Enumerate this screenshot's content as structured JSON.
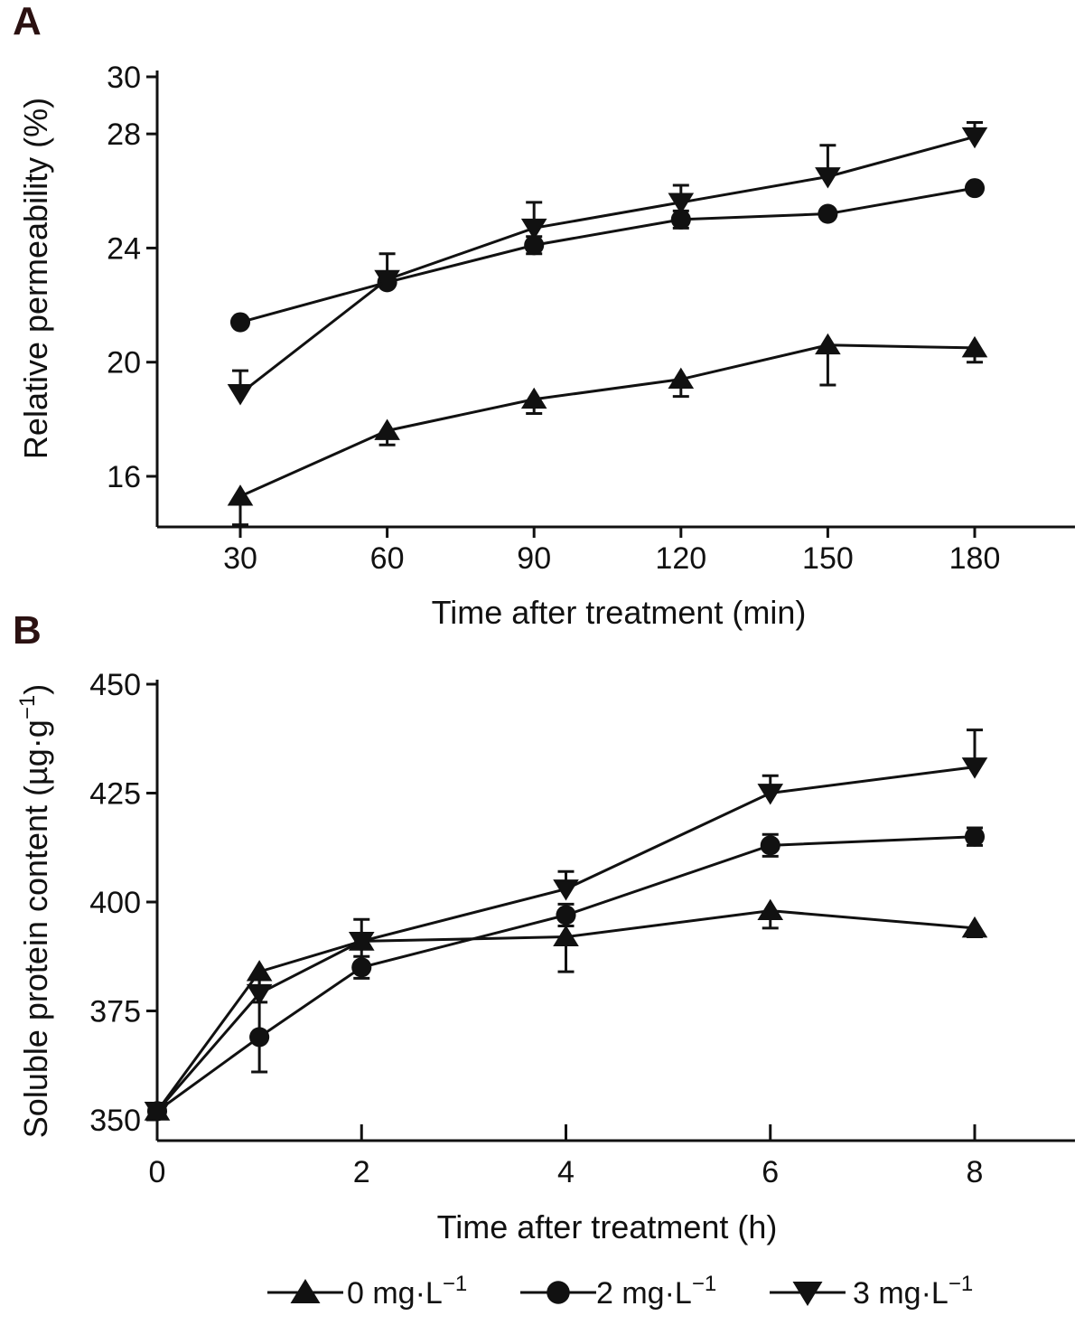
{
  "figure": {
    "legend": [
      {
        "marker": "triangle-up",
        "value": "0",
        "unit": "mg·L",
        "exponent": "−1"
      },
      {
        "marker": "circle",
        "value": "2",
        "unit": "mg·L",
        "exponent": "−1"
      },
      {
        "marker": "triangle-down",
        "value": "3",
        "unit": "mg·L",
        "exponent": "−1"
      }
    ],
    "line_color": "#111111"
  },
  "chart_data": [
    {
      "panel": "A",
      "type": "line",
      "xlabel": "Time after treatment (min)",
      "ylabel": "Relative permeability (%)",
      "x": [
        30,
        60,
        90,
        120,
        150,
        180
      ],
      "xticks": [
        30,
        60,
        90,
        120,
        150,
        180
      ],
      "yticks": [
        16,
        20,
        24,
        28,
        30
      ],
      "ylim": [
        14,
        30
      ],
      "series": [
        {
          "name": "0 mg·L−1",
          "marker": "triangle-up",
          "values": [
            15.3,
            17.6,
            18.7,
            19.4,
            20.6,
            20.5
          ],
          "error": [
            1.0,
            0.5,
            0.5,
            0.6,
            1.4,
            0.5
          ]
        },
        {
          "name": "2 mg·L−1",
          "marker": "circle",
          "values": [
            21.4,
            22.8,
            24.1,
            25.0,
            25.2,
            26.1
          ],
          "error": [
            0.0,
            0.0,
            0.3,
            0.3,
            0.0,
            0.0
          ]
        },
        {
          "name": "3 mg·L−1",
          "marker": "triangle-down",
          "values": [
            18.9,
            22.9,
            24.7,
            25.6,
            26.5,
            27.9
          ],
          "error": [
            0.8,
            0.9,
            0.9,
            0.6,
            1.1,
            0.5
          ]
        }
      ]
    },
    {
      "panel": "B",
      "type": "line",
      "xlabel": "Time after treatment (h)",
      "ylabel": "Soluble protein content (µg·g−1)",
      "x": [
        0,
        1,
        2,
        4,
        6,
        8
      ],
      "xticks": [
        0,
        2,
        4,
        6,
        8
      ],
      "yticks": [
        350,
        375,
        400,
        425,
        450
      ],
      "ylim": [
        345,
        450
      ],
      "series": [
        {
          "name": "0 mg·L−1",
          "marker": "triangle-up",
          "values": [
            352,
            384,
            391,
            392,
            398,
            394
          ],
          "error": [
            0,
            3.5,
            5,
            8,
            4,
            2
          ]
        },
        {
          "name": "2 mg·L−1",
          "marker": "circle",
          "values": [
            352,
            369,
            385,
            397,
            413,
            415
          ],
          "error": [
            0,
            8,
            2.5,
            2.5,
            2.5,
            2
          ]
        },
        {
          "name": "3 mg·L−1",
          "marker": "triangle-down",
          "values": [
            352,
            379,
            391,
            403,
            425,
            431
          ],
          "error": [
            0,
            4,
            5,
            4,
            4,
            8.5
          ]
        }
      ]
    }
  ]
}
